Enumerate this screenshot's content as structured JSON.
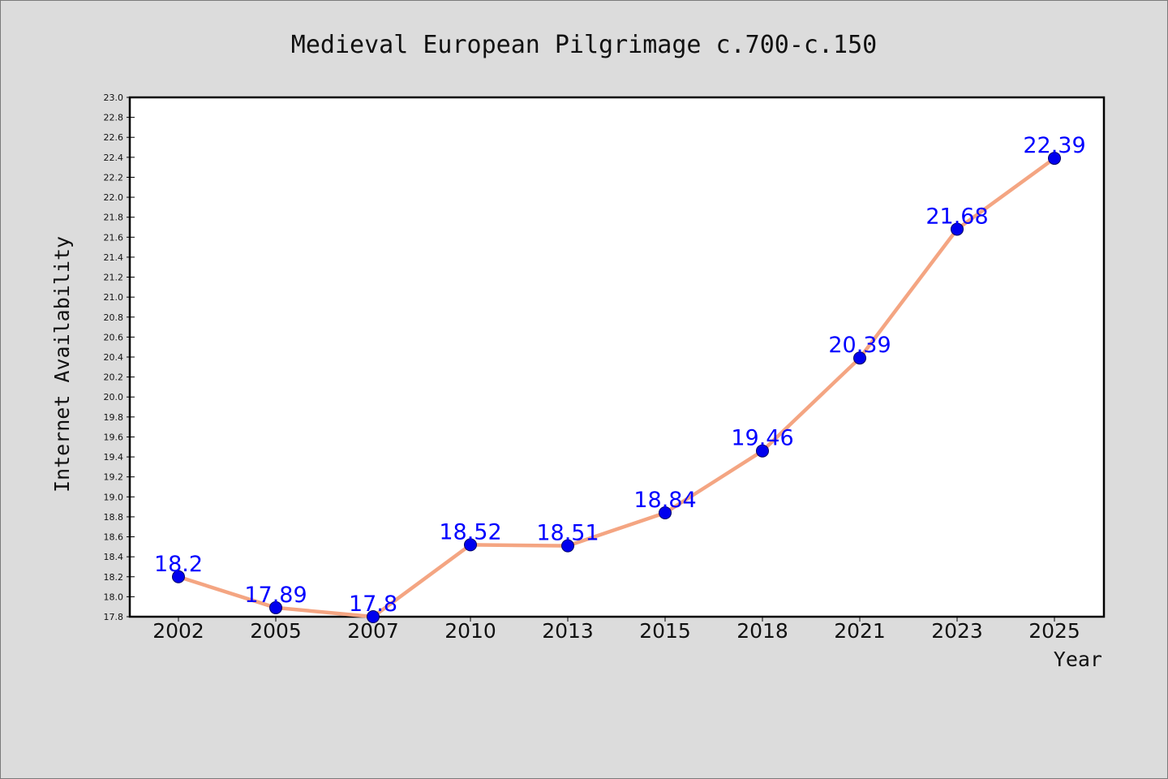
{
  "chart_data": {
    "type": "line",
    "title": "Medieval European Pilgrimage c.700-c.150",
    "xlabel": "Year",
    "ylabel": "Internet Availability",
    "categories": [
      "2002",
      "2005",
      "2007",
      "2010",
      "2013",
      "2015",
      "2018",
      "2021",
      "2023",
      "2025"
    ],
    "series": [
      {
        "values": [
          18.2,
          17.89,
          17.8,
          18.52,
          18.51,
          18.84,
          19.46,
          20.39,
          21.68,
          22.39
        ],
        "labels": [
          "18.2",
          "17.89",
          "17.8",
          "18.52",
          "18.51",
          "18.84",
          "19.46",
          "20.39",
          "21.68",
          "22.39"
        ]
      }
    ],
    "ylim": [
      17.8,
      23.0
    ],
    "yticks": [
      "17.8",
      "18.0",
      "18.2",
      "18.4",
      "18.6",
      "18.8",
      "19.0",
      "19.2",
      "19.4",
      "19.6",
      "19.8",
      "20.0",
      "20.2",
      "20.4",
      "20.6",
      "20.8",
      "21.0",
      "21.2",
      "21.4",
      "21.6",
      "21.8",
      "22.0",
      "22.2",
      "22.4",
      "22.6",
      "22.8",
      "23.0"
    ],
    "grid": false,
    "legend": "none",
    "colors": {
      "background": "#dcdcdc",
      "plot_background": "#ffffff",
      "line": "#f4a582",
      "marker": "#0000ee",
      "marker_edge": "#000066",
      "data_label": "#0000ff",
      "axis": "#000000"
    }
  }
}
